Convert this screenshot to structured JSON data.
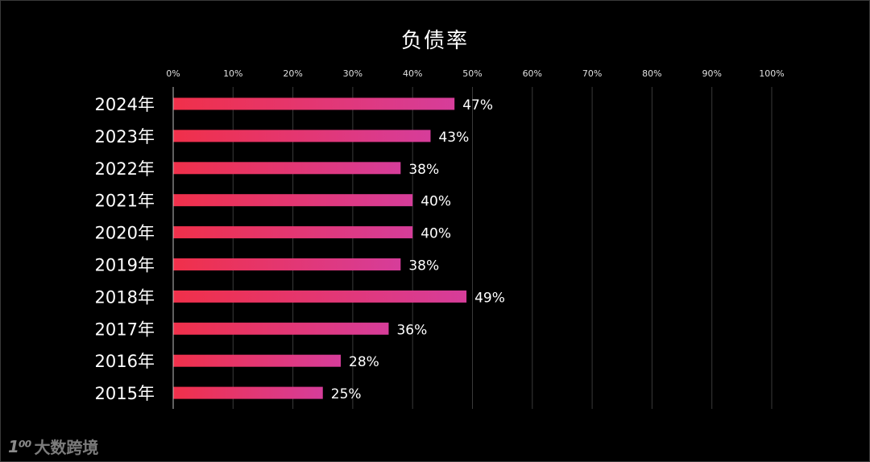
{
  "chart_data": {
    "type": "bar",
    "orientation": "horizontal",
    "title": "负债率",
    "categories": [
      "2024年",
      "2023年",
      "2022年",
      "2021年",
      "2020年",
      "2019年",
      "2018年",
      "2017年",
      "2016年",
      "2015年"
    ],
    "values": [
      47,
      43,
      38,
      40,
      40,
      38,
      49,
      36,
      28,
      25
    ],
    "value_labels": [
      "47%",
      "43%",
      "38%",
      "40%",
      "40%",
      "38%",
      "49%",
      "36%",
      "28%",
      "25%"
    ],
    "xlim": [
      0,
      100
    ],
    "x_ticks": [
      0,
      10,
      20,
      30,
      40,
      50,
      60,
      70,
      80,
      90,
      100
    ],
    "x_tick_labels": [
      "0%",
      "10%",
      "20%",
      "30%",
      "40%",
      "50%",
      "60%",
      "70%",
      "80%",
      "90%",
      "100%"
    ],
    "x_axis_position": "top",
    "grid": true,
    "bar_gradient": [
      "#f0304a",
      "#d63d9a"
    ]
  },
  "watermark": {
    "logo": "1⁰⁰",
    "text": "大数跨境"
  }
}
